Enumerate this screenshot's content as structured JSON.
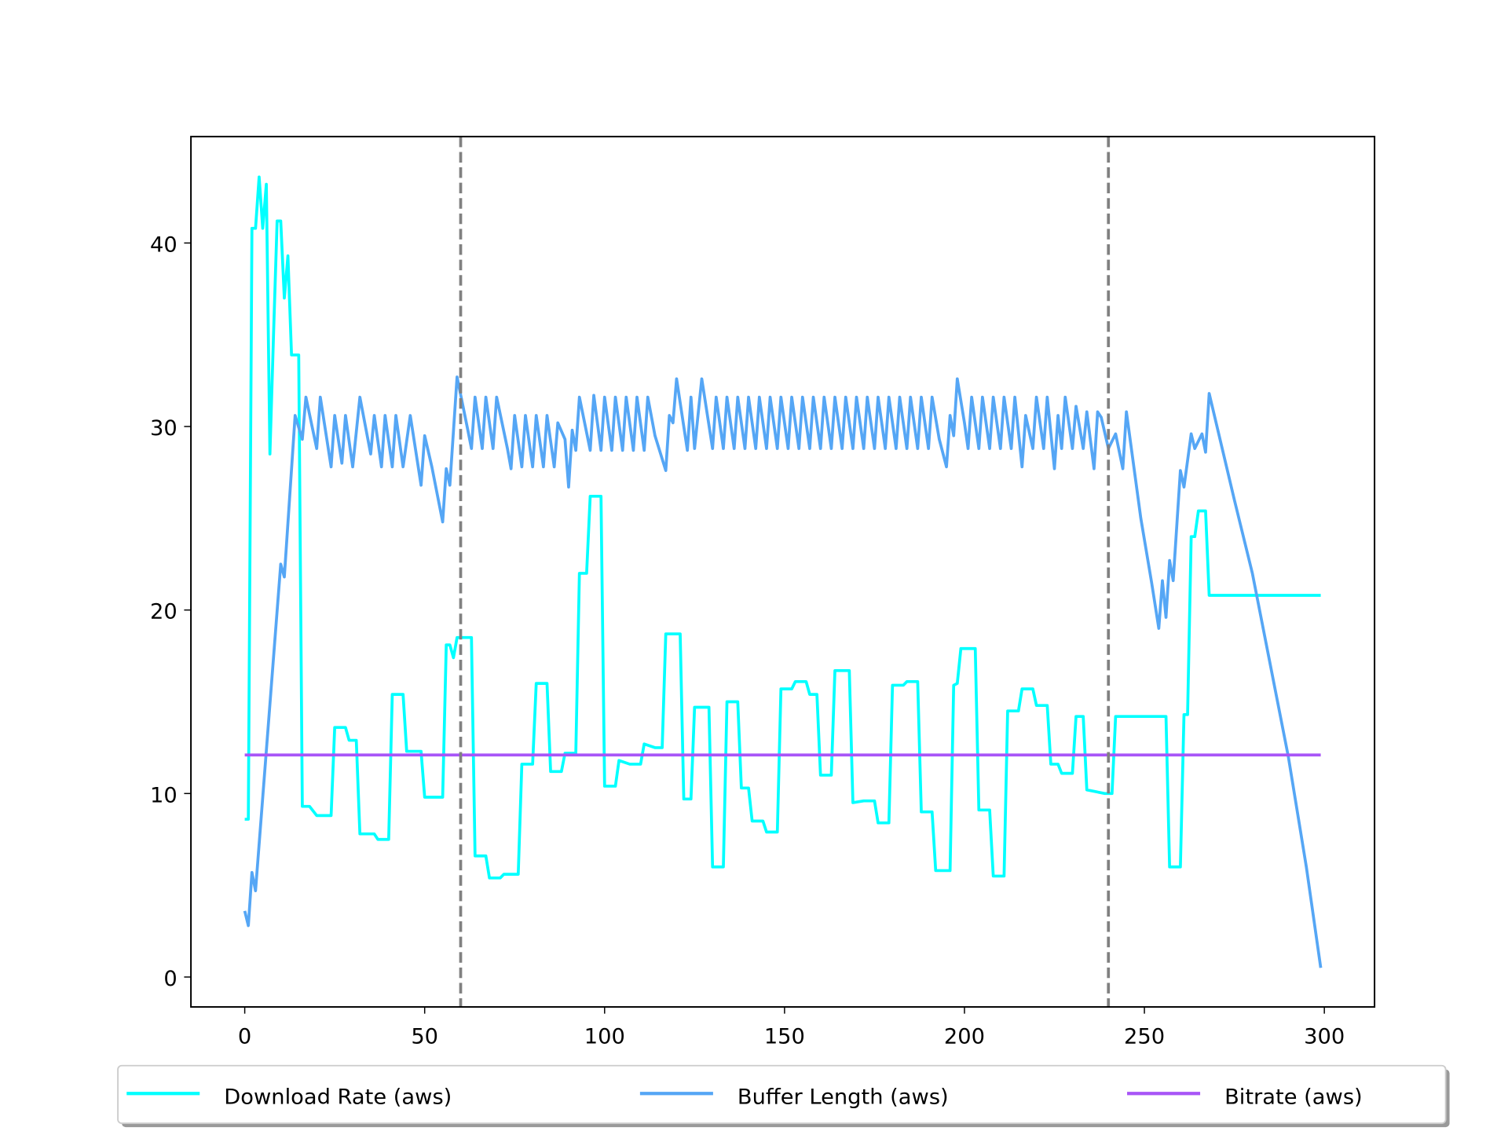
{
  "chart_data": {
    "type": "line",
    "xlim": [
      -14.95,
      313.95
    ],
    "ylim": [
      -1.63,
      45.8
    ],
    "xticks": [
      0,
      50,
      100,
      150,
      200,
      250,
      300
    ],
    "yticks": [
      0,
      10,
      20,
      30,
      40
    ],
    "grid": false,
    "legend": "lower center",
    "vlines": [
      60,
      240
    ],
    "vline_color": "#808080",
    "series": [
      {
        "name": "Download Rate (aws)",
        "color": "#00ffff",
        "x": [
          0,
          1,
          2,
          3,
          4,
          5,
          6,
          7,
          8,
          9,
          10,
          11,
          12,
          13,
          15,
          16,
          18,
          20,
          24,
          25,
          28,
          29,
          31,
          32,
          36,
          37,
          40,
          41,
          44,
          45,
          49,
          50,
          55,
          56,
          57,
          58,
          59,
          63,
          64,
          67,
          68,
          71,
          72,
          76,
          77,
          80,
          81,
          84,
          85,
          88,
          89,
          92,
          93,
          95,
          96,
          99,
          100,
          103,
          104,
          107,
          110,
          111,
          114,
          116,
          117,
          121,
          122,
          124,
          125,
          129,
          130,
          133,
          134,
          137,
          138,
          140,
          141,
          144,
          145,
          148,
          149,
          152,
          153,
          156,
          157,
          159,
          160,
          163,
          164,
          168,
          169,
          172,
          175,
          176,
          179,
          180,
          183,
          184,
          187,
          188,
          191,
          192,
          196,
          197,
          198,
          199,
          203,
          204,
          207,
          208,
          211,
          212,
          215,
          216,
          219,
          220,
          223,
          224,
          226,
          227,
          230,
          231,
          233,
          234,
          239,
          240,
          241,
          242,
          256,
          257,
          260,
          261,
          262,
          263,
          264,
          265,
          267,
          268,
          299
        ],
        "values": [
          8.6,
          8.6,
          40.8,
          40.8,
          43.6,
          40.8,
          43.2,
          28.5,
          35,
          41.2,
          41.2,
          37,
          39.3,
          33.9,
          33.9,
          9.3,
          9.3,
          8.8,
          8.8,
          13.6,
          13.6,
          12.9,
          12.9,
          7.8,
          7.8,
          7.5,
          7.5,
          15.4,
          15.4,
          12.3,
          12.3,
          9.8,
          9.8,
          18.1,
          18.1,
          17.4,
          18.5,
          18.5,
          6.6,
          6.6,
          5.4,
          5.4,
          5.6,
          5.6,
          11.6,
          11.6,
          16,
          16,
          11.2,
          11.2,
          12.2,
          12.2,
          22,
          22,
          26.2,
          26.2,
          10.4,
          10.4,
          11.8,
          11.6,
          11.6,
          12.7,
          12.5,
          12.5,
          18.7,
          18.7,
          9.7,
          9.7,
          14.7,
          14.7,
          6,
          6,
          15,
          15,
          10.3,
          10.3,
          8.5,
          8.5,
          7.9,
          7.9,
          15.7,
          15.7,
          16.1,
          16.1,
          15.4,
          15.4,
          11,
          11,
          16.7,
          16.7,
          9.5,
          9.6,
          9.6,
          8.4,
          8.4,
          15.9,
          15.9,
          16.1,
          16.1,
          9,
          9,
          5.8,
          5.8,
          15.9,
          16,
          17.9,
          17.9,
          9.1,
          9.1,
          5.5,
          5.5,
          14.5,
          14.5,
          15.7,
          15.7,
          14.8,
          14.8,
          11.6,
          11.6,
          11.1,
          11.1,
          14.2,
          14.2,
          10.2,
          10,
          10,
          10,
          14.2,
          14.2,
          6,
          6,
          14.3,
          14.3,
          24,
          24,
          25.4,
          25.4,
          20.8,
          20.8
        ]
      },
      {
        "name": "Buffer Length (aws)",
        "color": "#55a6f5",
        "x": [
          0,
          1,
          2,
          3,
          10,
          11,
          14,
          16,
          17,
          20,
          21,
          24,
          25,
          27,
          28,
          30,
          32,
          35,
          36,
          38,
          39,
          41,
          42,
          44,
          46,
          49,
          50,
          52,
          55,
          56,
          57,
          59,
          62,
          63,
          64,
          66,
          67,
          69,
          70,
          73,
          74,
          75,
          77,
          78,
          80,
          81,
          83,
          84,
          86,
          87,
          89,
          90,
          91,
          92,
          93,
          96,
          97,
          99,
          100,
          102,
          103,
          105,
          106,
          108,
          109,
          111,
          112,
          114,
          117,
          118,
          119,
          120,
          123,
          124,
          125,
          127,
          130,
          131,
          133,
          134,
          136,
          137,
          139,
          140,
          142,
          143,
          145,
          146,
          148,
          149,
          151,
          152,
          154,
          155,
          157,
          158,
          160,
          161,
          163,
          164,
          166,
          167,
          169,
          170,
          172,
          173,
          175,
          176,
          178,
          179,
          181,
          182,
          184,
          185,
          187,
          188,
          190,
          191,
          193,
          195,
          196,
          197,
          198,
          200,
          201,
          202,
          204,
          205,
          207,
          208,
          210,
          211,
          213,
          214,
          216,
          217,
          219,
          220,
          222,
          223,
          225,
          226,
          227,
          228,
          230,
          231,
          233,
          234,
          236,
          237,
          238,
          240,
          242,
          244,
          245,
          249,
          252,
          254,
          255,
          256,
          257,
          258,
          260,
          261,
          263,
          264,
          266,
          267,
          268,
          275,
          280,
          285,
          290,
          295,
          299
        ],
        "values": [
          3.6,
          2.8,
          5.7,
          4.7,
          22.5,
          21.8,
          30.6,
          29.3,
          31.6,
          28.8,
          31.6,
          27.8,
          30.6,
          28,
          30.6,
          27.8,
          31.6,
          28.5,
          30.6,
          27.8,
          30.6,
          27.8,
          30.6,
          27.8,
          30.6,
          26.8,
          29.5,
          27.8,
          24.8,
          27.7,
          26.8,
          32.7,
          29.8,
          28.8,
          31.6,
          28.8,
          31.6,
          28.8,
          31.6,
          28.8,
          27.7,
          30.6,
          27.8,
          30.6,
          27.8,
          30.6,
          27.8,
          30.6,
          27.8,
          30.2,
          29.3,
          26.7,
          29.8,
          28.7,
          31.6,
          28.7,
          31.7,
          28.7,
          31.6,
          28.7,
          31.6,
          28.7,
          31.6,
          28.7,
          31.6,
          28.7,
          31.6,
          29.5,
          27.6,
          30.6,
          30.2,
          32.6,
          28.7,
          31.6,
          28.8,
          32.6,
          28.8,
          31.6,
          28.8,
          31.6,
          28.8,
          31.6,
          28.8,
          31.6,
          28.8,
          31.6,
          28.8,
          31.6,
          28.8,
          31.6,
          28.8,
          31.6,
          28.8,
          31.6,
          28.8,
          31.6,
          28.8,
          31.6,
          28.8,
          31.6,
          28.8,
          31.6,
          28.8,
          31.6,
          28.8,
          31.6,
          28.8,
          31.6,
          28.8,
          31.6,
          28.8,
          31.6,
          28.8,
          31.6,
          28.8,
          31.6,
          28.8,
          31.6,
          29.3,
          27.8,
          30.6,
          29.5,
          32.6,
          30.2,
          28.8,
          31.6,
          28.8,
          31.6,
          28.8,
          31.6,
          28.8,
          31.6,
          28.8,
          31.6,
          27.8,
          30.6,
          28.8,
          31.6,
          28.8,
          31.6,
          27.7,
          30.6,
          28.8,
          31.6,
          28.8,
          31.1,
          28.8,
          30.8,
          27.7,
          30.8,
          30.5,
          28.8,
          29.6,
          27.7,
          30.8,
          25,
          21.5,
          19,
          21.6,
          19.6,
          22.7,
          21.6,
          27.6,
          26.7,
          29.6,
          28.8,
          29.6,
          28.6,
          31.8,
          26,
          22,
          17,
          12,
          6,
          0.5
        ]
      },
      {
        "name": "Bitrate (aws)",
        "color": "#a855f7",
        "x": [
          0,
          299
        ],
        "values": [
          12.1,
          12.1
        ]
      }
    ]
  }
}
